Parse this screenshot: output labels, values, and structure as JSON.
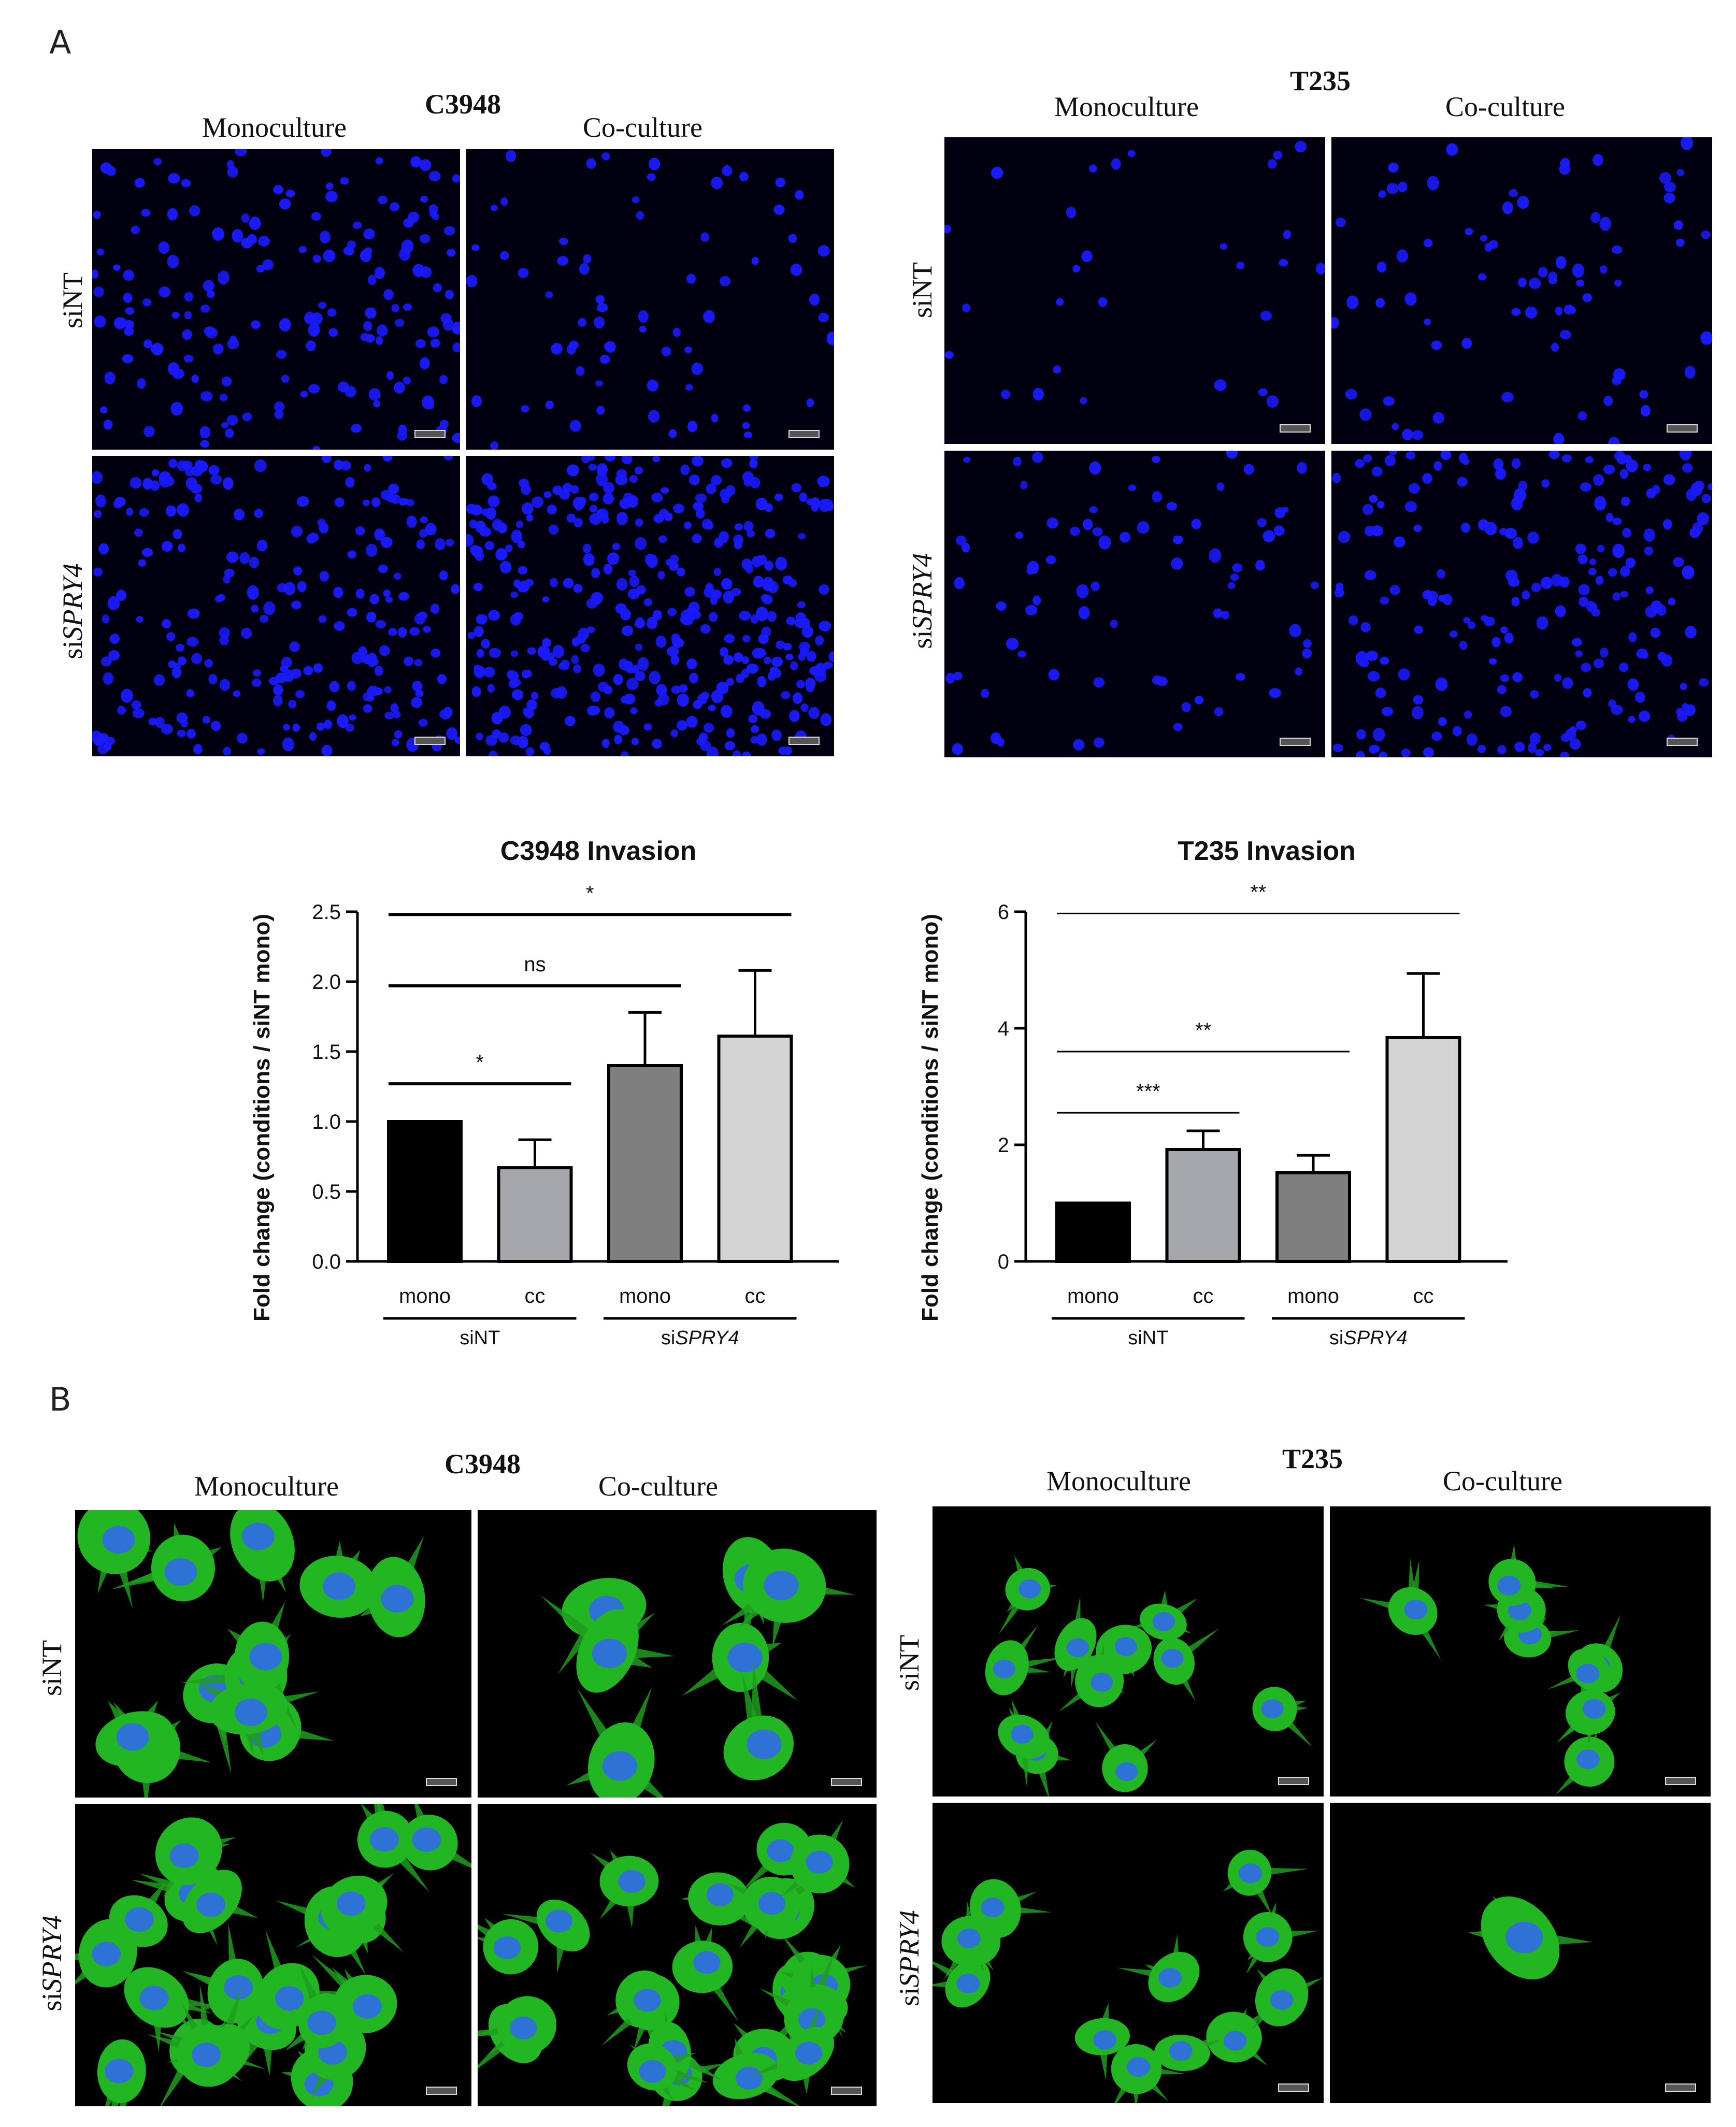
{
  "panel_a": {
    "letter": "A",
    "c3948_title": "C3948",
    "t235_title": "T235",
    "col_mono": "Monoculture",
    "col_cc": "Co-culture",
    "row_sint": "siNT",
    "row_si_prefix": "si",
    "row_si_gene": "SPRY4"
  },
  "panel_b": {
    "letter": "B",
    "c3948_title": "C3948",
    "t235_title": "T235",
    "col_mono": "Monoculture",
    "col_cc": "Co-culture",
    "row_sint": "siNT",
    "row_si_prefix": "si",
    "row_si_gene": "SPRY4"
  },
  "colors": {
    "bar_mono_sint": "#000000",
    "bar_cc_sint": "#a6a6ad",
    "bar_mono_spry4": "#7f7f7f",
    "bar_cc_spry4": "#d4d4d4",
    "nuclei": "#1a1aff",
    "cytoskeleton": "#22b622"
  },
  "chart_data": [
    {
      "type": "bar",
      "title": "C3948 Invasion",
      "ylabel": "Fold change (conditions / siNT mono)",
      "categories": [
        "mono",
        "cc",
        "mono",
        "cc"
      ],
      "groups": [
        {
          "label_prefix": "si",
          "label": "NT"
        },
        {
          "label_prefix": "si",
          "label": "SPRY4"
        }
      ],
      "group_labels": [
        "siNT",
        "siSPRY4"
      ],
      "values": [
        1.0,
        0.67,
        1.4,
        1.61
      ],
      "errors": [
        0.0,
        0.2,
        0.38,
        0.47
      ],
      "ylim": [
        0,
        2.5
      ],
      "yticks": [
        "0.0",
        "0.5",
        "1.0",
        "1.5",
        "2.0",
        "2.5"
      ],
      "significance": [
        {
          "from": 0,
          "to": 1,
          "label": "*"
        },
        {
          "from": 0,
          "to": 2,
          "label": "ns"
        },
        {
          "from": 0,
          "to": 3,
          "label": "*"
        }
      ]
    },
    {
      "type": "bar",
      "title": "T235 Invasion",
      "ylabel": "Fold change (conditions / siNT mono)",
      "categories": [
        "mono",
        "cc",
        "mono",
        "cc"
      ],
      "groups": [
        {
          "label_prefix": "si",
          "label": "NT"
        },
        {
          "label_prefix": "si",
          "label": "SPRY4"
        }
      ],
      "group_labels": [
        "siNT",
        "siSPRY4"
      ],
      "values": [
        1.0,
        1.92,
        1.52,
        3.84
      ],
      "errors": [
        0.0,
        0.32,
        0.3,
        1.1
      ],
      "ylim": [
        0,
        6
      ],
      "yticks": [
        "0",
        "2",
        "4",
        "6"
      ],
      "significance": [
        {
          "from": 0,
          "to": 1,
          "label": "***"
        },
        {
          "from": 0,
          "to": 2,
          "label": "**"
        },
        {
          "from": 0,
          "to": 3,
          "label": "**"
        }
      ]
    }
  ]
}
